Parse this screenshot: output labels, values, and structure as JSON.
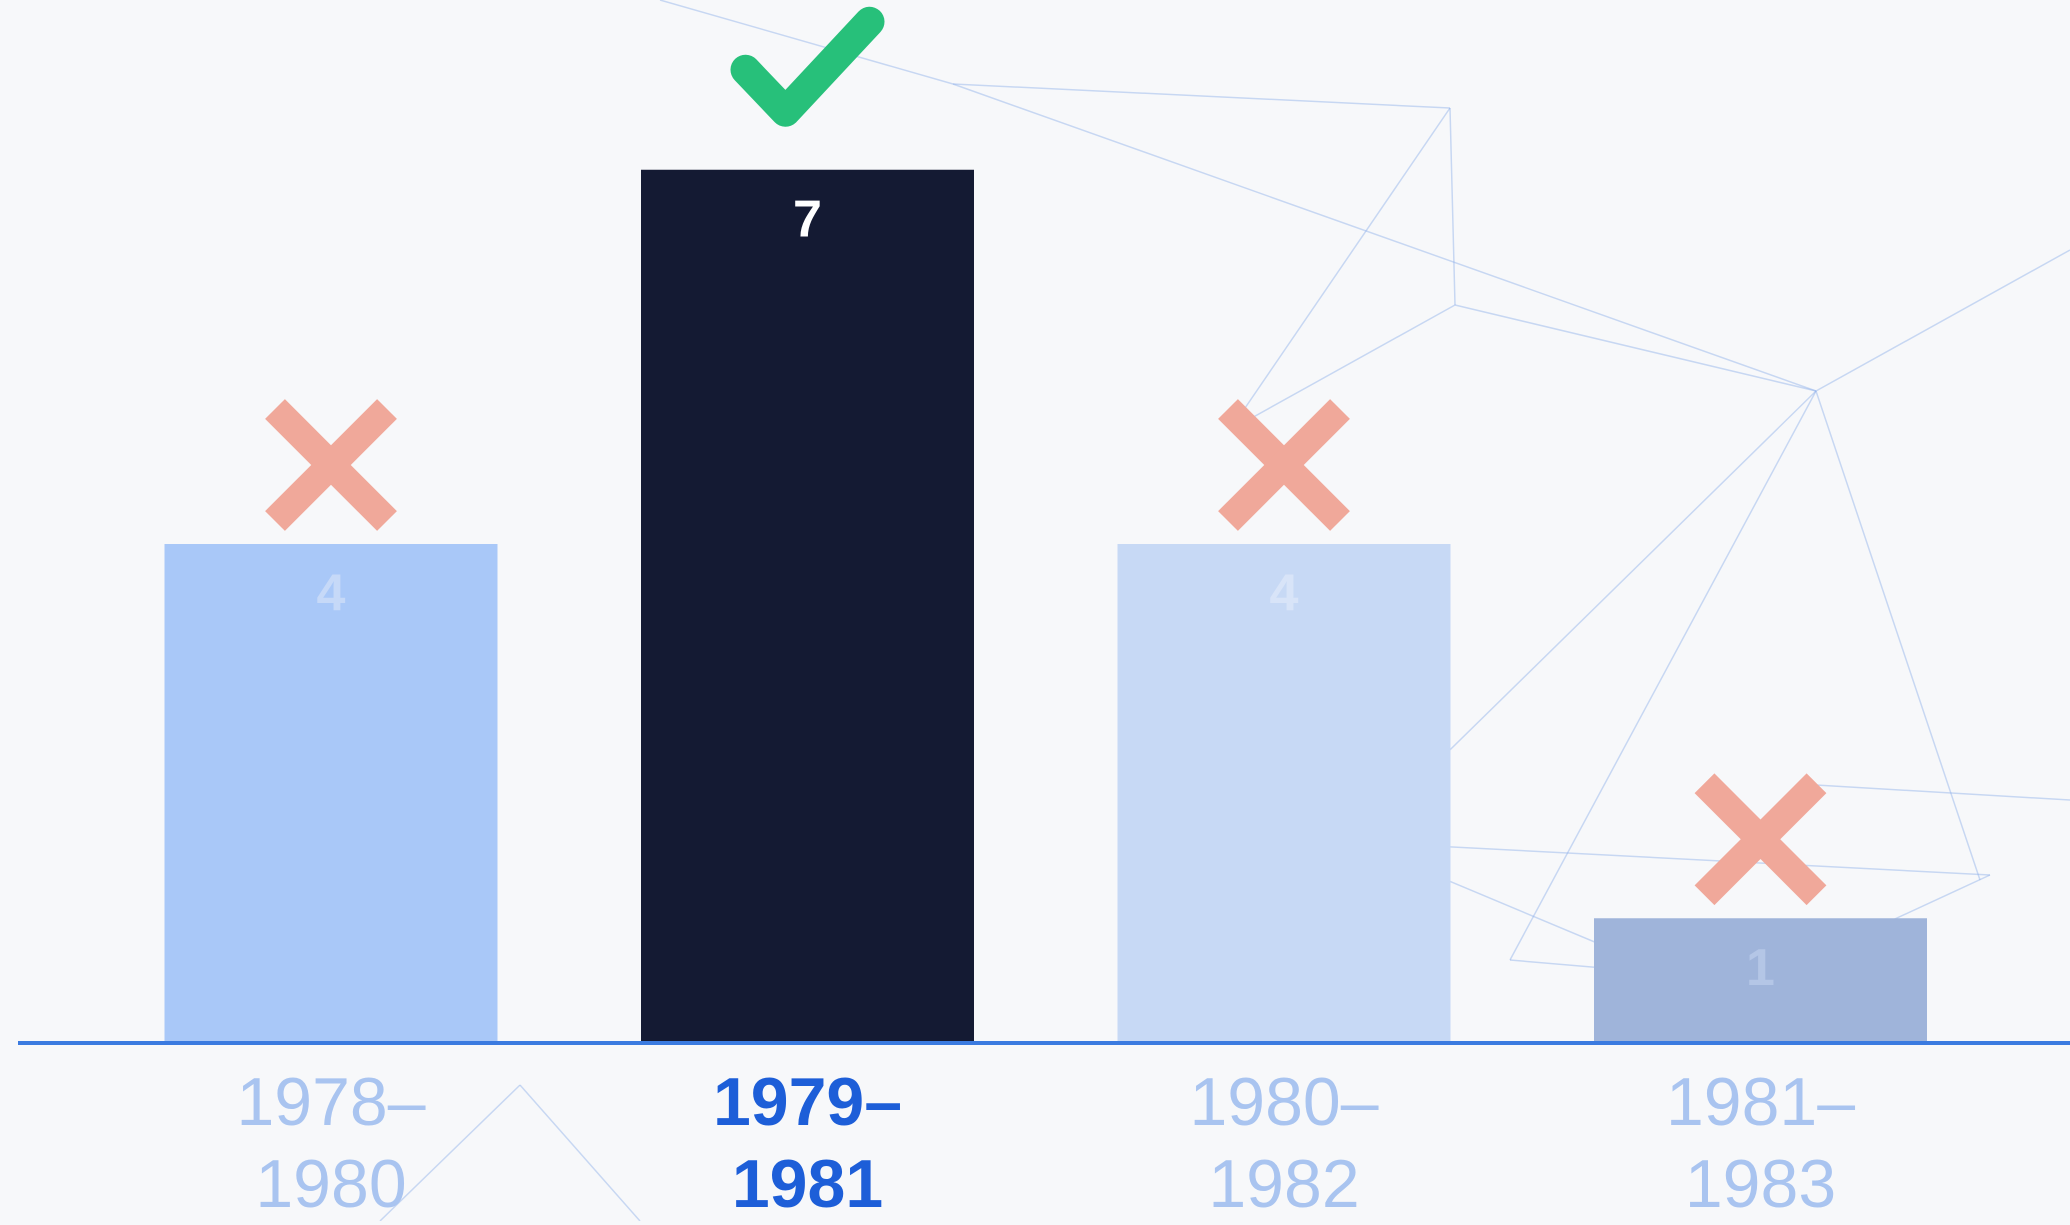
{
  "chart_data": {
    "type": "bar",
    "categories": [
      "1978–1980",
      "1979–1981",
      "1980–1982",
      "1981–1983"
    ],
    "values": [
      4,
      7,
      4,
      1
    ],
    "colors": [
      "#a9c8f8",
      "#141a33",
      "#c7d9f5",
      "#9fb4da"
    ],
    "ylim": [
      0,
      8
    ]
  }
}
